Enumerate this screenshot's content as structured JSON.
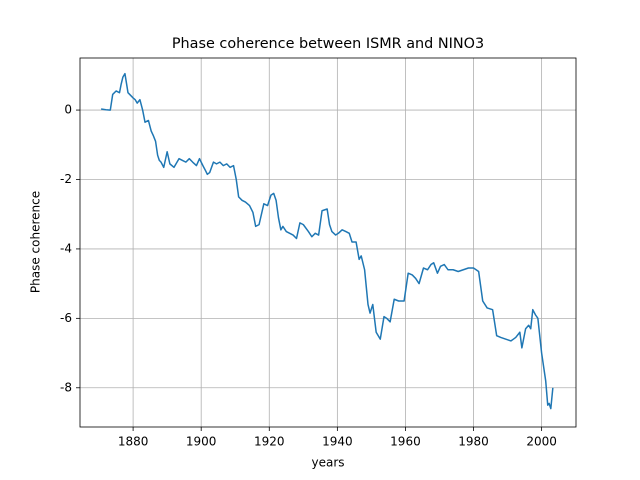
{
  "chart_data": {
    "type": "line",
    "title": "Phase coherence between ISMR and NINO3",
    "x_label": "years",
    "y_label": "Phase coherence",
    "series": [
      {
        "name": "Phase coherence",
        "color": "#1f77b4",
        "x": [
          1870.6,
          1872,
          1873.3,
          1874,
          1875,
          1876,
          1876.5,
          1877,
          1877.6,
          1878.5,
          1880,
          1880.6,
          1881.2,
          1882,
          1882.8,
          1883.5,
          1884.5,
          1885.3,
          1886,
          1886.6,
          1887.2,
          1887.7,
          1888.2,
          1889,
          1890,
          1890.8,
          1892,
          1893.5,
          1894.5,
          1895.5,
          1896.5,
          1897.5,
          1898.6,
          1899.5,
          1900.5,
          1901.3,
          1901.8,
          1902.5,
          1903.6,
          1904.5,
          1905.5,
          1906.5,
          1907.5,
          1908.5,
          1909.5,
          1910.3,
          1911,
          1912,
          1913,
          1914.2,
          1915.2,
          1916,
          1917,
          1918.4,
          1919.5,
          1920.5,
          1921.3,
          1922,
          1922.7,
          1923.4,
          1924,
          1925,
          1926,
          1927,
          1928,
          1929,
          1930,
          1931.5,
          1932.5,
          1933.5,
          1934.5,
          1935.5,
          1937,
          1937.7,
          1938.4,
          1939.5,
          1940.3,
          1941.4,
          1942.5,
          1943.5,
          1944.3,
          1945.5,
          1946.4,
          1947,
          1948,
          1948.6,
          1949,
          1949.6,
          1950.4,
          1951.4,
          1952.6,
          1953.7,
          1954.5,
          1955.5,
          1956.7,
          1958,
          1959.6,
          1960.8,
          1962,
          1963,
          1964,
          1965.3,
          1966.5,
          1967.5,
          1968.3,
          1969.4,
          1970.3,
          1971.4,
          1972.5,
          1974,
          1975.5,
          1977,
          1978.5,
          1980,
          1981.5,
          1982.7,
          1984,
          1985.6,
          1986.8,
          1988,
          1989.5,
          1991,
          1991.7,
          1992.4,
          1993.6,
          1994.2,
          1995.3,
          1996.2,
          1996.8,
          1997.4,
          1998.2,
          1998.9,
          2000,
          2001.2,
          2001.8,
          2002.2,
          2002.7,
          2003.3
        ],
        "values": [
          0.03,
          0.01,
          0.0,
          0.45,
          0.55,
          0.5,
          0.75,
          0.95,
          1.05,
          0.5,
          0.35,
          0.3,
          0.2,
          0.3,
          0.0,
          -0.35,
          -0.3,
          -0.6,
          -0.75,
          -0.9,
          -1.3,
          -1.45,
          -1.5,
          -1.65,
          -1.2,
          -1.55,
          -1.65,
          -1.4,
          -1.45,
          -1.5,
          -1.4,
          -1.5,
          -1.6,
          -1.4,
          -1.6,
          -1.75,
          -1.85,
          -1.8,
          -1.5,
          -1.55,
          -1.5,
          -1.6,
          -1.55,
          -1.65,
          -1.6,
          -2.0,
          -2.5,
          -2.6,
          -2.65,
          -2.75,
          -2.95,
          -3.35,
          -3.3,
          -2.7,
          -2.75,
          -2.45,
          -2.4,
          -2.6,
          -3.1,
          -3.45,
          -3.35,
          -3.5,
          -3.55,
          -3.6,
          -3.7,
          -3.25,
          -3.3,
          -3.5,
          -3.65,
          -3.55,
          -3.6,
          -2.9,
          -2.85,
          -3.3,
          -3.5,
          -3.6,
          -3.55,
          -3.45,
          -3.5,
          -3.55,
          -3.8,
          -3.8,
          -4.3,
          -4.2,
          -4.6,
          -5.2,
          -5.6,
          -5.85,
          -5.6,
          -6.4,
          -6.6,
          -5.95,
          -6.0,
          -6.1,
          -5.45,
          -5.5,
          -5.5,
          -4.7,
          -4.75,
          -4.85,
          -5.0,
          -4.55,
          -4.6,
          -4.45,
          -4.4,
          -4.7,
          -4.5,
          -4.45,
          -4.6,
          -4.6,
          -4.65,
          -4.6,
          -4.55,
          -4.55,
          -4.65,
          -5.5,
          -5.7,
          -5.75,
          -6.5,
          -6.55,
          -6.6,
          -6.65,
          -6.6,
          -6.55,
          -6.4,
          -6.85,
          -6.3,
          -6.2,
          -6.3,
          -5.75,
          -5.9,
          -6.0,
          -7.0,
          -7.8,
          -8.5,
          -8.45,
          -8.6,
          -8.0
        ]
      }
    ],
    "xlim": [
      1864.4,
      2010.1
    ],
    "ylim": [
      -9.13,
      1.5
    ],
    "xticks": [
      1880,
      1900,
      1920,
      1940,
      1960,
      1980,
      2000
    ],
    "yticks": [
      -8,
      -6,
      -4,
      -2,
      0
    ],
    "grid": true
  }
}
